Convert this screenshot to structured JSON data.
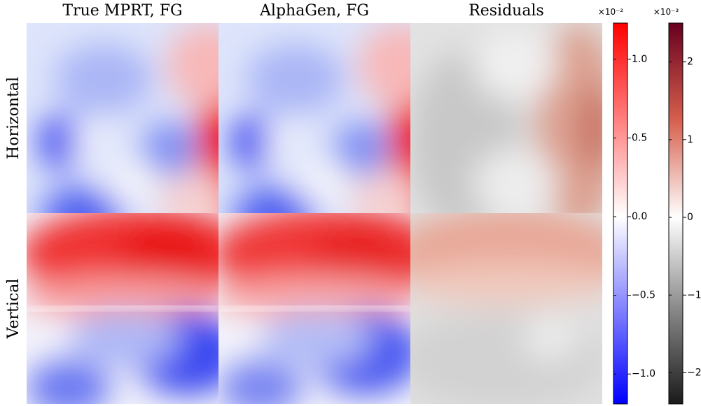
{
  "chart_data": {
    "type": "heatmap",
    "column_titles": [
      "True MPRT, FG",
      "AlphaGen, FG",
      "Residuals"
    ],
    "row_labels": [
      "Horizontal",
      "Vertical"
    ],
    "colorbars": [
      {
        "scale_label": "×10⁻²",
        "ylim": [
          -1.19,
          1.23
        ],
        "yticks": [
          {
            "value": -1,
            "label": "−1.0"
          },
          {
            "value": -0.5,
            "label": "−0.5"
          },
          {
            "value": 0,
            "label": "0.0"
          },
          0.5,
          {
            "value": 1,
            "label": "1.0"
          }
        ]
      },
      {
        "scale_label": "×10⁻³",
        "ylim": [
          -2.4,
          2.5
        ],
        "yticks": [
          {
            "value": -2,
            "label": "−2"
          },
          {
            "value": -1,
            "label": "−1"
          },
          0,
          1,
          2
        ]
      }
    ]
  }
}
